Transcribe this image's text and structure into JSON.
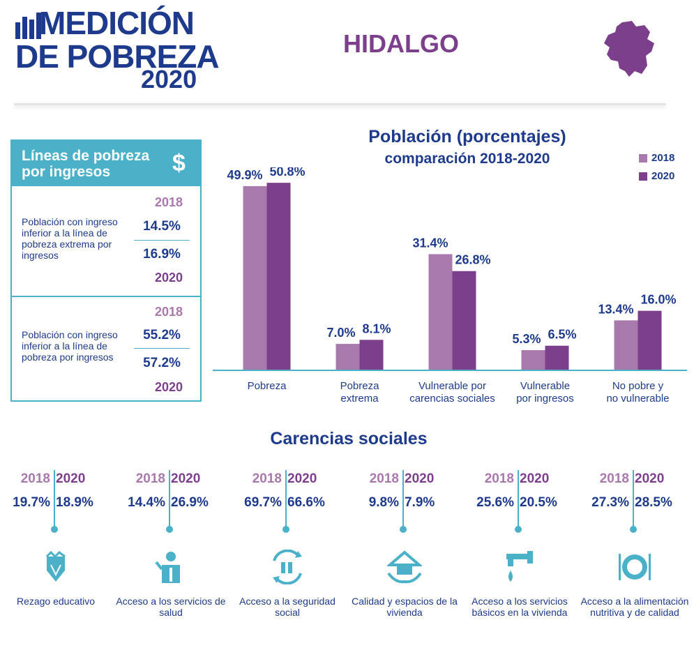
{
  "header": {
    "logo_line1": "MEDICIÓN",
    "logo_line2": "DE POBREZA",
    "logo_year": "2020",
    "state": "HIDALGO"
  },
  "income_lines": {
    "title": "Líneas de pobreza por ingresos",
    "icon": "dollar-icon",
    "rows": [
      {
        "label": "Población con ingreso inferior a la línea de pobreza extrema por ingresos",
        "year_a": "2018",
        "value_a": "14.5%",
        "value_b": "16.9%",
        "year_b": "2020"
      },
      {
        "label": "Población con ingreso inferior a la línea de pobreza por ingresos",
        "year_a": "2018",
        "value_a": "55.2%",
        "value_b": "57.2%",
        "year_b": "2020"
      }
    ]
  },
  "colors": {
    "c2018": "#a87aab",
    "c2020": "#7b3f8c",
    "accent": "#4ab1c9",
    "text": "#1e3a8c"
  },
  "chart_data": {
    "type": "bar",
    "title": "Población (porcentajes)",
    "subtitle": "comparación 2018-2020",
    "categories": [
      "Pobreza",
      "Pobreza\nextrema",
      "Vulnerable por\ncarencias sociales",
      "Vulnerable\npor ingresos",
      "No pobre y\nno vulnerable"
    ],
    "series": [
      {
        "name": "2018",
        "values": [
          49.9,
          7.0,
          31.4,
          5.3,
          13.4
        ],
        "labels": [
          "49.9%",
          "7.0%",
          "31.4%",
          "5.3%",
          "13.4%"
        ]
      },
      {
        "name": "2020",
        "values": [
          50.8,
          8.1,
          26.8,
          6.5,
          16.0
        ],
        "labels": [
          "50.8%",
          "8.1%",
          "26.8%",
          "6.5%",
          "16.0%"
        ]
      }
    ],
    "ylim": [
      0,
      55
    ],
    "legend": "top-right"
  },
  "carencias": {
    "title": "Carencias sociales",
    "items": [
      {
        "y2018": "2018",
        "y2020": "2020",
        "v2018": "19.7%",
        "v2020": "18.9%",
        "label": "Rezago educativo",
        "icon": "pencil-icon"
      },
      {
        "y2018": "2018",
        "y2020": "2020",
        "v2018": "14.4%",
        "v2020": "26.9%",
        "label": "Acceso a los servicios de salud",
        "icon": "doctor-icon"
      },
      {
        "y2018": "2018",
        "y2020": "2020",
        "v2018": "69.7%",
        "v2020": "66.6%",
        "label": "Acceso a la seguridad social",
        "icon": "social-security-icon"
      },
      {
        "y2018": "2018",
        "y2020": "2020",
        "v2018": "9.8%",
        "v2020": "7.9%",
        "label": "Calidad y espacios de la vivienda",
        "icon": "house-hands-icon"
      },
      {
        "y2018": "2018",
        "y2020": "2020",
        "v2018": "25.6%",
        "v2020": "20.5%",
        "label": "Acceso a los servicios básicos en la vivienda",
        "icon": "faucet-icon"
      },
      {
        "y2018": "2018",
        "y2020": "2020",
        "v2018": "27.3%",
        "v2020": "28.5%",
        "label": "Acceso a la alimentación nutritiva y de calidad",
        "icon": "plate-icon"
      }
    ]
  }
}
